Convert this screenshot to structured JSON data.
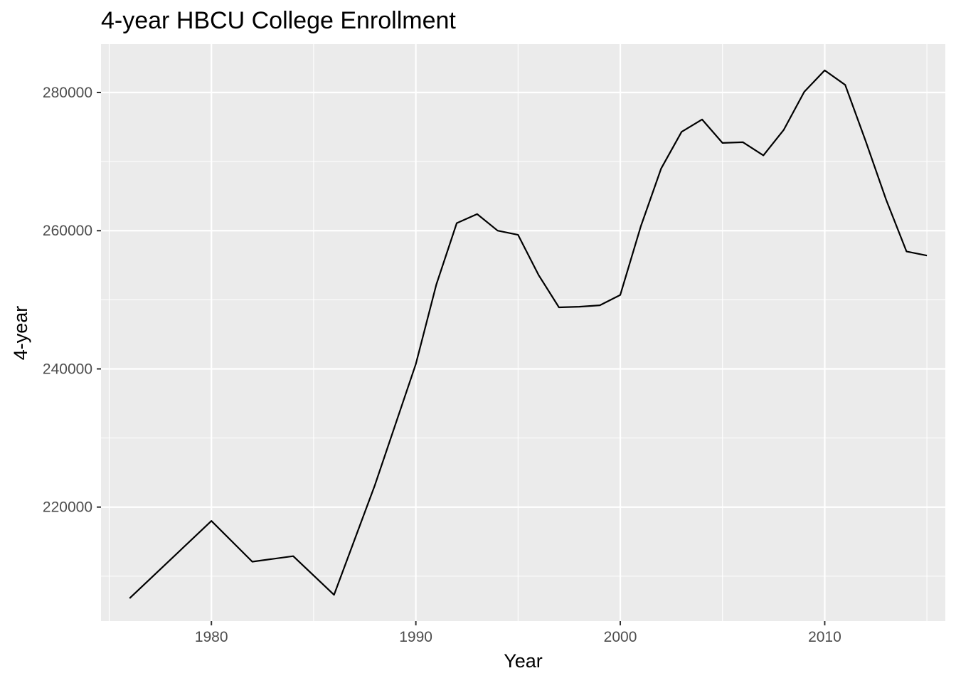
{
  "chart_data": {
    "type": "line",
    "title": "4-year HBCU College Enrollment",
    "xlabel": "Year",
    "ylabel": "4-year",
    "xlim": [
      1974.6,
      2015.9
    ],
    "ylim": [
      203500,
      287000
    ],
    "x_ticks": [
      1980,
      1990,
      2000,
      2010
    ],
    "x_minor_ticks": [
      1975,
      1985,
      1995,
      2005,
      2015
    ],
    "y_ticks": [
      220000,
      240000,
      260000,
      280000
    ],
    "y_minor_ticks": [
      210000,
      230000,
      250000,
      270000
    ],
    "grid": true,
    "legend": "none",
    "colors": {
      "panel": "#ebebeb",
      "grid": "#ffffff",
      "line": "#000000",
      "tick_text": "#4d4d4d",
      "tick_mark": "#333333"
    },
    "series": [
      {
        "x": [
          1976,
          1980,
          1982,
          1984,
          1986,
          1988,
          1990,
          1991,
          1992,
          1993,
          1994,
          1995,
          1996,
          1997,
          1998,
          1999,
          2000,
          2001,
          2002,
          2003,
          2004,
          2005,
          2006,
          2007,
          2008,
          2009,
          2010,
          2011,
          2012,
          2013,
          2014,
          2015
        ],
        "values": [
          206800,
          218000,
          212100,
          212900,
          207300,
          223200,
          240700,
          252200,
          261100,
          262400,
          260000,
          259400,
          253600,
          248900,
          249000,
          249200,
          250700,
          260600,
          269000,
          274300,
          276100,
          272700,
          272800,
          270900,
          274600,
          280100,
          283200,
          281100,
          273000,
          264500,
          257000,
          256400
        ]
      }
    ]
  }
}
